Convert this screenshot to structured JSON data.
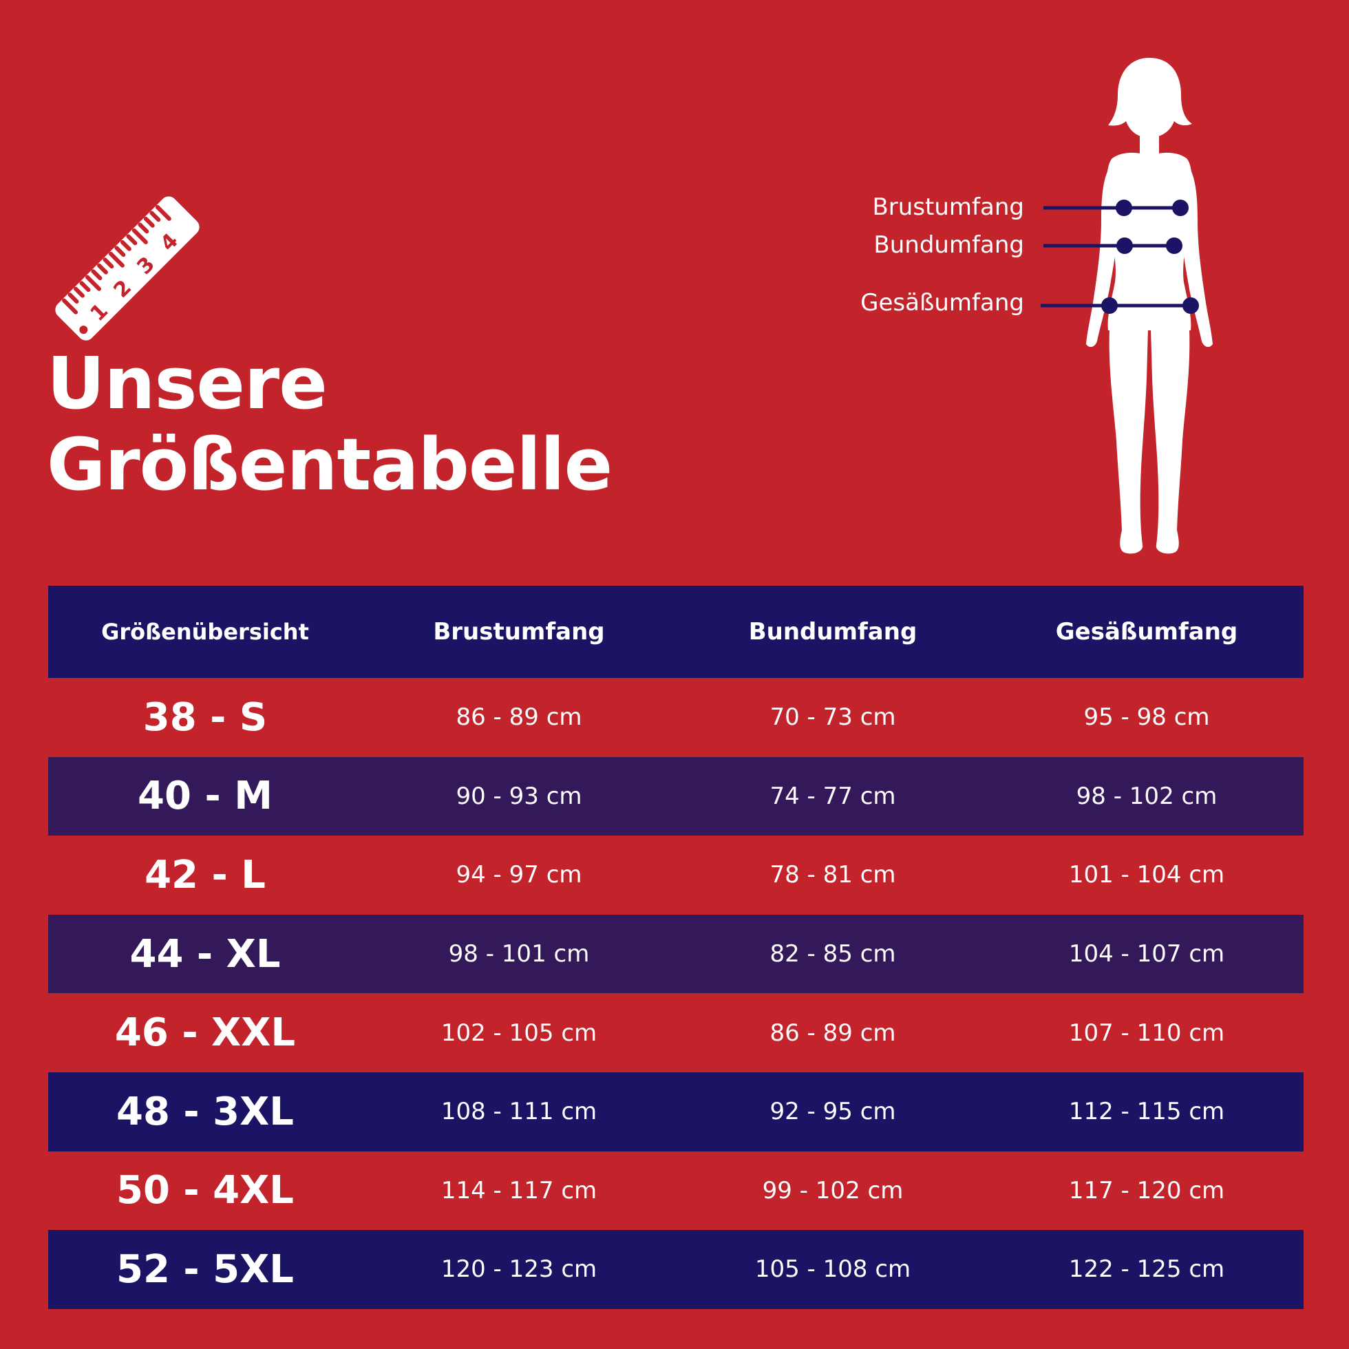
{
  "colors": {
    "background": "#c3232b",
    "header": "#1b1363",
    "row_purple": "#33185a",
    "row_navy": "#1b1363",
    "text": "#ffffff",
    "marker": "#1b1363"
  },
  "icons": {
    "ruler": "ruler-icon",
    "figure": "woman-silhouette-icon"
  },
  "ruler_numbers": [
    "1",
    "2",
    "3",
    "4"
  ],
  "title": {
    "line1": "Unsere",
    "line2": "Größentabelle"
  },
  "measurements": {
    "chest": "Brustumfang",
    "waist": "Bundumfang",
    "hip": "Gesäßumfang"
  },
  "table": {
    "headers": [
      "Größenübersicht",
      "Brustumfang",
      "Bundumfang",
      "Gesäßumfang"
    ],
    "rows": [
      {
        "size": "38 - S",
        "chest": "86 - 89 cm",
        "waist": "70 - 73 cm",
        "hip": "95 - 98 cm"
      },
      {
        "size": "40 - M",
        "chest": "90 - 93 cm",
        "waist": "74 - 77 cm",
        "hip": "98 - 102 cm"
      },
      {
        "size": "42 - L",
        "chest": "94 - 97 cm",
        "waist": "78 - 81 cm",
        "hip": "101 - 104 cm"
      },
      {
        "size": "44 - XL",
        "chest": "98 - 101 cm",
        "waist": "82 - 85 cm",
        "hip": "104 - 107 cm"
      },
      {
        "size": "46 - XXL",
        "chest": "102 - 105 cm",
        "waist": "86 - 89 cm",
        "hip": "107 - 110 cm"
      },
      {
        "size": "48 - 3XL",
        "chest": "108 - 111 cm",
        "waist": "92 - 95 cm",
        "hip": "112 - 115 cm"
      },
      {
        "size": "50 - 4XL",
        "chest": "114 - 117 cm",
        "waist": "99 - 102 cm",
        "hip": "117 - 120 cm"
      },
      {
        "size": "52 - 5XL",
        "chest": "120 - 123 cm",
        "waist": "105 - 108 cm",
        "hip": "122 - 125 cm"
      }
    ]
  }
}
